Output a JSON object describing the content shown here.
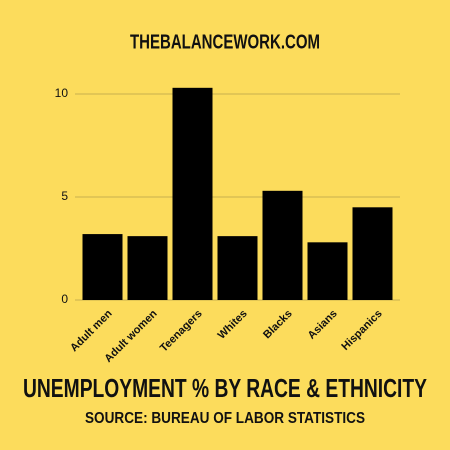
{
  "chart_data": {
    "type": "bar",
    "title": "UNEMPLOYMENT % BY RACE & ETHNICITY",
    "subtitle": "SOURCE: BUREAU OF LABOR STATISTICS",
    "header": "THEBALANCEWORK.COM",
    "categories": [
      "Adult men",
      "Adult women",
      "Teenagers",
      "Whites",
      "Blacks",
      "Asians",
      "Hispanics"
    ],
    "values": [
      3.2,
      3.1,
      10.3,
      3.1,
      5.3,
      2.8,
      4.5
    ],
    "color": "#000000",
    "ylim": [
      0,
      10.5
    ],
    "yticks": [
      0,
      5,
      10
    ],
    "grid": true
  }
}
